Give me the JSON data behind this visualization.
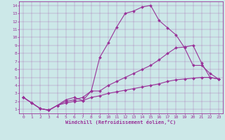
{
  "background_color": "#cce8e8",
  "line_color": "#993399",
  "xlim": [
    -0.5,
    23.5
  ],
  "ylim": [
    0.5,
    14.5
  ],
  "xticks": [
    0,
    1,
    2,
    3,
    4,
    5,
    6,
    7,
    8,
    9,
    10,
    11,
    12,
    13,
    14,
    15,
    16,
    17,
    18,
    19,
    20,
    21,
    22,
    23
  ],
  "yticks": [
    1,
    2,
    3,
    4,
    5,
    6,
    7,
    8,
    9,
    10,
    11,
    12,
    13,
    14
  ],
  "xlabel": "Windchill (Refroidissement éolien,°C)",
  "line1_x": [
    0,
    1,
    2,
    3,
    4,
    5,
    6,
    7,
    8,
    9,
    10,
    11,
    12,
    13,
    14,
    15,
    16,
    17,
    18,
    19,
    20,
    21,
    22,
    23
  ],
  "line1_y": [
    2.5,
    1.8,
    1.1,
    0.9,
    1.5,
    2.0,
    2.2,
    2.5,
    3.3,
    7.5,
    9.3,
    11.3,
    13.0,
    13.3,
    13.8,
    14.0,
    12.1,
    11.2,
    10.3,
    8.7,
    6.5,
    6.5,
    5.5,
    4.8
  ],
  "line2_x": [
    0,
    1,
    2,
    3,
    4,
    5,
    6,
    7,
    8,
    9,
    10,
    11,
    12,
    13,
    14,
    15,
    16,
    17,
    18,
    19,
    20,
    21,
    22,
    23
  ],
  "line2_y": [
    2.5,
    1.8,
    1.1,
    0.9,
    1.5,
    2.2,
    2.5,
    2.1,
    3.3,
    3.3,
    4.0,
    4.5,
    5.0,
    5.5,
    6.0,
    6.5,
    7.2,
    8.0,
    8.7,
    8.8,
    9.0,
    6.8,
    5.0,
    4.8
  ],
  "line3_x": [
    0,
    1,
    2,
    3,
    4,
    5,
    6,
    7,
    8,
    9,
    10,
    11,
    12,
    13,
    14,
    15,
    16,
    17,
    18,
    19,
    20,
    21,
    22,
    23
  ],
  "line3_y": [
    2.5,
    1.8,
    1.1,
    0.9,
    1.5,
    1.8,
    2.0,
    2.1,
    2.5,
    2.7,
    3.0,
    3.2,
    3.4,
    3.6,
    3.8,
    4.0,
    4.2,
    4.5,
    4.7,
    4.8,
    4.9,
    5.0,
    5.0,
    4.8
  ]
}
